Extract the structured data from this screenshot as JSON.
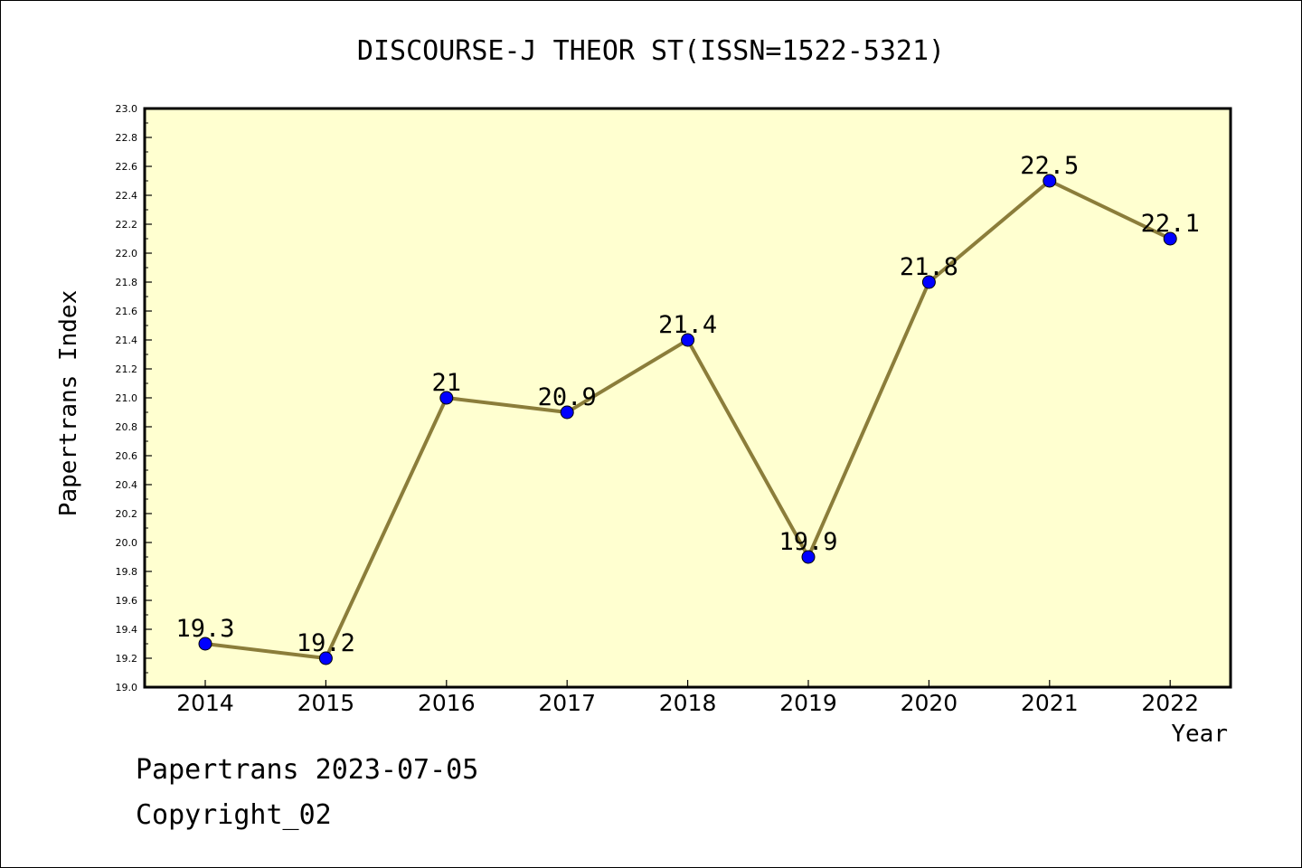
{
  "chart_data": {
    "type": "line",
    "title": "DISCOURSE-J THEOR ST(ISSN=1522-5321)",
    "xlabel": "Year",
    "ylabel": "Papertrans Index",
    "categories": [
      "2014",
      "2015",
      "2016",
      "2017",
      "2018",
      "2019",
      "2020",
      "2021",
      "2022"
    ],
    "values": [
      19.3,
      19.2,
      21,
      20.9,
      21.4,
      19.9,
      21.8,
      22.5,
      22.1
    ],
    "data_labels": [
      "19.3",
      "19.2",
      "21",
      "20.9",
      "21.4",
      "19.9",
      "21.8",
      "22.5",
      "22.1"
    ],
    "ylim": [
      19.0,
      23.0
    ],
    "yticks": [
      "19.0",
      "19.2",
      "19.4",
      "19.6",
      "19.8",
      "20.0",
      "20.2",
      "20.4",
      "20.6",
      "20.8",
      "21.0",
      "21.2",
      "21.4",
      "21.6",
      "21.8",
      "22.0",
      "22.2",
      "22.4",
      "22.6",
      "22.8",
      "23.0"
    ],
    "grid": false,
    "legend": "none",
    "colors": {
      "plot_background": "#ffffd0",
      "line": "#8b7d3a",
      "marker": "#0000ff"
    }
  },
  "footer": {
    "line1": "Papertrans 2023-07-05",
    "line2": "Copyright_02"
  }
}
